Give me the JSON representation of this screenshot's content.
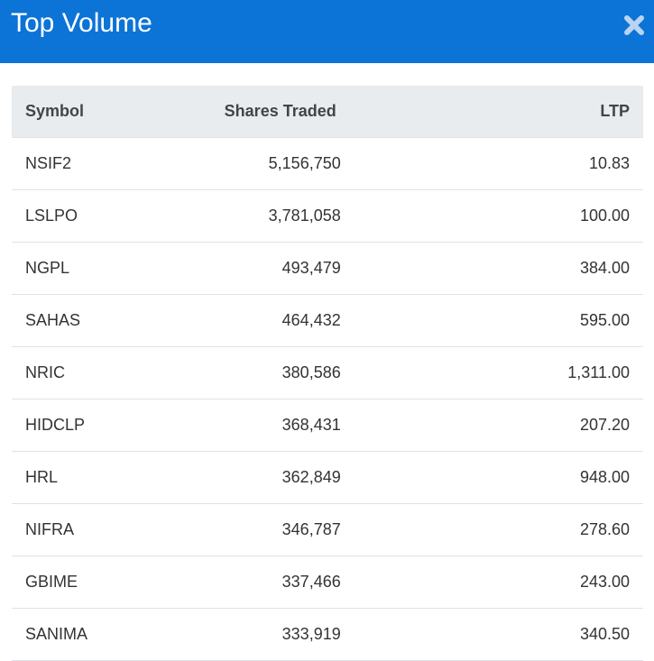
{
  "header": {
    "title": "Top Volume"
  },
  "table": {
    "columns": [
      "Symbol",
      "Shares Traded",
      "LTP"
    ],
    "rows": [
      [
        "NSIF2",
        "5,156,750",
        "10.83"
      ],
      [
        "LSLPO",
        "3,781,058",
        "100.00"
      ],
      [
        "NGPL",
        "493,479",
        "384.00"
      ],
      [
        "SAHAS",
        "464,432",
        "595.00"
      ],
      [
        "NRIC",
        "380,586",
        "1,311.00"
      ],
      [
        "HIDCLP",
        "368,431",
        "207.20"
      ],
      [
        "HRL",
        "362,849",
        "948.00"
      ],
      [
        "NIFRA",
        "346,787",
        "278.60"
      ],
      [
        "GBIME",
        "337,466",
        "243.00"
      ],
      [
        "SANIMA",
        "333,919",
        "340.50"
      ]
    ]
  }
}
